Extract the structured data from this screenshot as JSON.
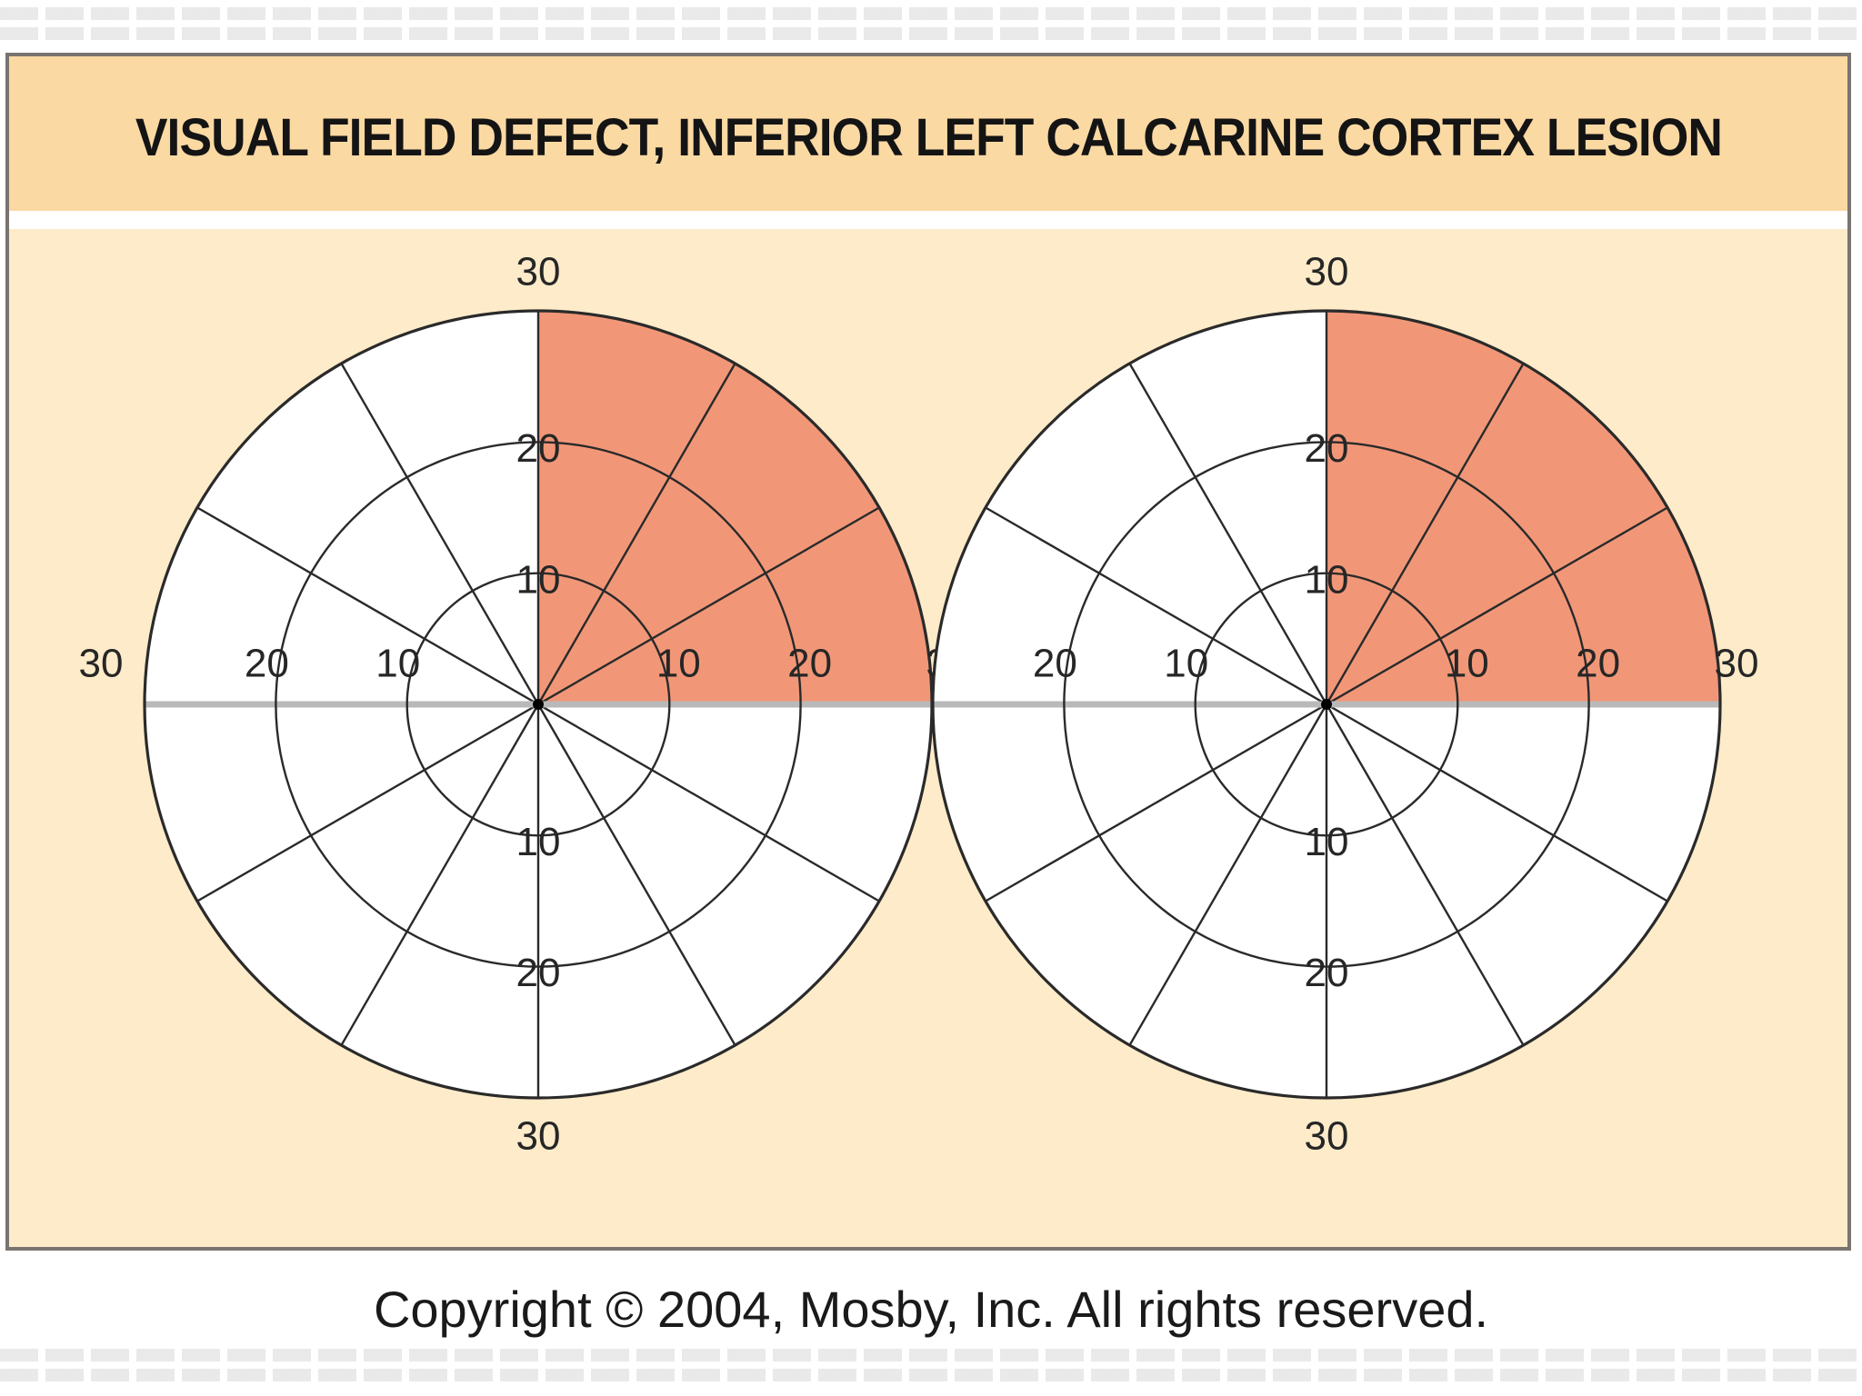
{
  "title": "VISUAL FIELD DEFECT, INFERIOR LEFT CALCARINE CORTEX LESION",
  "copyright": "Copyright © 2004, Mosby, Inc. All rights reserved.",
  "colors": {
    "background": "#fdebc9",
    "title_band": "#fbd9a3",
    "defect_fill": "#f19778",
    "meridian_gray": "#b9b9b9",
    "grid_line": "#2a2a2a"
  },
  "charts": [
    {
      "name": "left-eye",
      "ring_labels": [
        "10",
        "20",
        "30"
      ],
      "top_labels": [
        "30",
        "20",
        "10"
      ],
      "bottom_labels": [
        "10",
        "20",
        "30"
      ],
      "left_labels": [
        "30",
        "20",
        "10"
      ],
      "right_labels": [
        "10",
        "20",
        "30"
      ],
      "defect": {
        "quadrant": "upper-right",
        "start_deg": 0,
        "end_deg": 90
      }
    },
    {
      "name": "right-eye",
      "ring_labels": [
        "10",
        "20",
        "30"
      ],
      "top_labels": [
        "30",
        "20",
        "10"
      ],
      "bottom_labels": [
        "10",
        "20",
        "30"
      ],
      "left_labels": [
        "20",
        "10"
      ],
      "right_labels": [
        "10",
        "20",
        "30"
      ],
      "defect": {
        "quadrant": "upper-right",
        "start_deg": 0,
        "end_deg": 90
      }
    }
  ]
}
